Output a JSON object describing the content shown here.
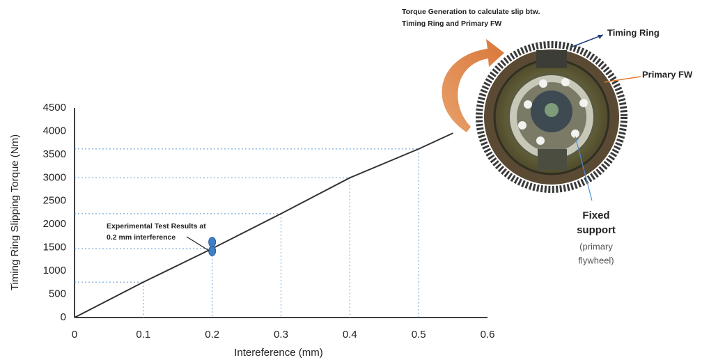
{
  "chart_data": {
    "type": "line",
    "xlabel": "Intereference (mm)",
    "ylabel": "Timing Ring Slipping Torque (Nm)",
    "xlim": [
      0,
      0.6
    ],
    "xticks": [
      0,
      0.1,
      0.2,
      0.3,
      0.4,
      0.5,
      0.6
    ],
    "ylim": [
      0,
      4500
    ],
    "yticks": [
      0,
      500,
      1000,
      1500,
      2000,
      2500,
      3000,
      3500,
      4000,
      4500
    ],
    "series": [
      {
        "color": "#333333",
        "x": [
          0,
          0.1,
          0.2,
          0.3,
          0.4,
          0.5,
          0.55
        ],
        "values": [
          0,
          760,
          1480,
          2230,
          3000,
          3620,
          3960
        ]
      }
    ],
    "points": {
      "color": "#3f7fc6",
      "x": [
        0.2,
        0.2
      ],
      "values": [
        1430,
        1620
      ]
    },
    "annotation": [
      "Experimental Test Results at",
      "0.2 mm interference"
    ]
  },
  "figure": {
    "caption": [
      "Torque Generation to calculate slip btw.",
      "Timing Ring and Primary FW"
    ],
    "timing_ring": "Timing Ring",
    "primary_fw": "Primary FW",
    "fixed_support": [
      "Fixed",
      "support"
    ],
    "fixed_note": [
      "(primary",
      "flywheel)"
    ]
  }
}
